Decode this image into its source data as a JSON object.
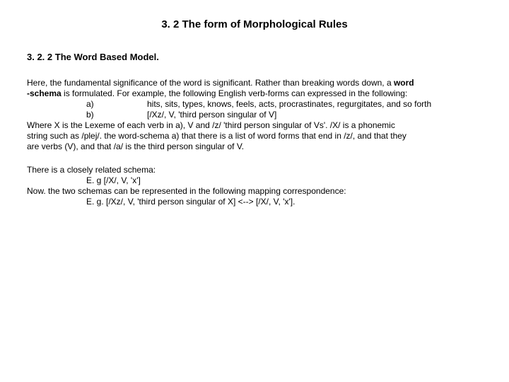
{
  "title": "3. 2 The form of Morphological Rules",
  "subhead": "3. 2. 2 The Word Based Model.",
  "p1_l1_a": "Here, the fundamental significance of the word is significant. Rather than breaking words down, a ",
  "p1_l1_b": "word",
  "p1_l2_a": "-schema",
  "p1_l2_b": " is formulated. For example, the following English verb-forms can  expressed in the following:",
  "p1_l3_letter": "a)",
  "p1_l3_txt": "hits, sits, types, knows, feels, acts, procrastinates, regurgitates, and so forth",
  "p1_l4_letter": "b)",
  "p1_l4_txt": "[/Xz/, V, 'third person singular of V]",
  "p1_l5": "Where X is the Lexeme of each verb in a), V and /z/ 'third person singular of Vs'. /X/ is a phonemic",
  "p1_l6": "string such as /plej/. the word-schema a) that there is a list of word forms that end in /z/, and that they",
  "p1_l7": "are verbs (V), and that /a/ is the third person singular of V.",
  "p2_l1": "There is a closely related schema:",
  "p2_l2": "E. g [/X/, V, 'x']",
  "p2_l3": "Now. the two schemas can be represented in the following mapping correspondence:",
  "p2_l4": "E. g. [/Xz/, V, 'third person singular of X] <--> [/X/, V, 'x']."
}
